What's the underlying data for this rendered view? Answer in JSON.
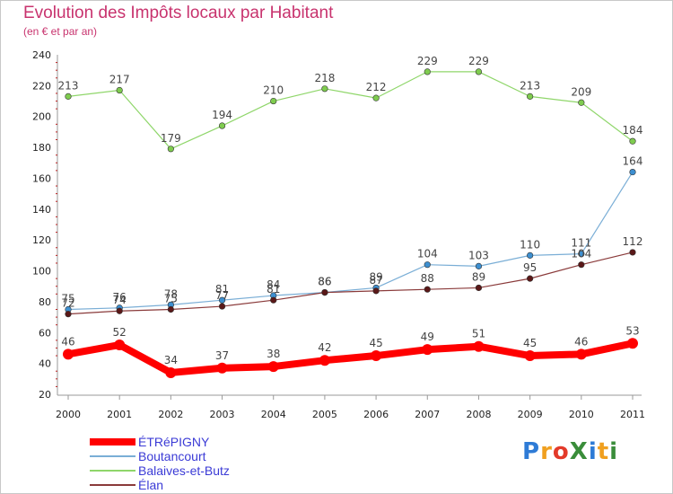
{
  "title": "Evolution des Impôts locaux par Habitant",
  "subtitle": "(en € et par an)",
  "logo": {
    "text": "ProXiti",
    "letters": [
      "P",
      "r",
      "o",
      "X",
      "i",
      "t",
      "i"
    ],
    "colors": [
      "#2e7bd6",
      "#f0a020",
      "#e33a2a",
      "#3a8d3a",
      "#2e7bd6",
      "#f0a020",
      "#3a8d3a"
    ]
  },
  "chart_data": {
    "type": "line",
    "x": [
      "2000",
      "2001",
      "2002",
      "2003",
      "2004",
      "2005",
      "2006",
      "2007",
      "2008",
      "2009",
      "2010",
      "2011"
    ],
    "ylim": [
      20,
      240
    ],
    "yticks": [
      20,
      40,
      60,
      80,
      100,
      120,
      140,
      160,
      180,
      200,
      220,
      240
    ],
    "grid": false,
    "legend_position": "bottom-left",
    "series": [
      {
        "name": "Balaives-et-Butz",
        "color": "#8fd66a",
        "point_color": "#7fcc4f",
        "width": 1.2,
        "values": [
          213,
          217,
          179,
          194,
          210,
          218,
          212,
          229,
          229,
          213,
          209,
          184
        ]
      },
      {
        "name": "Boutancourt",
        "color": "#7aaed6",
        "point_color": "#3d8fd0",
        "width": 1.2,
        "values": [
          75,
          76,
          78,
          81,
          84,
          86,
          89,
          104,
          103,
          110,
          111,
          164
        ]
      },
      {
        "name": "Élan",
        "color": "#8a3a3a",
        "point_color": "#5a1818",
        "width": 1.2,
        "values": [
          72,
          74,
          75,
          77,
          81,
          86,
          87,
          88,
          89,
          95,
          104,
          112
        ]
      },
      {
        "name": "ÉTRéPIGNY",
        "color": "#ff0000",
        "point_color": "#ff0000",
        "width": 8,
        "values": [
          46,
          52,
          34,
          37,
          38,
          42,
          45,
          49,
          51,
          45,
          46,
          53
        ]
      }
    ],
    "legend_order": [
      "ÉTRéPIGNY",
      "Boutancourt",
      "Balaives-et-Butz",
      "Élan"
    ]
  }
}
